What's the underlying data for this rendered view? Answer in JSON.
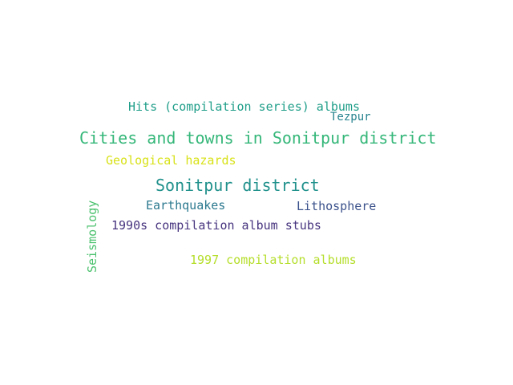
{
  "words": {
    "hits_compilation": {
      "text": "Hits (compilation series) albums",
      "color": "#1f9e89"
    },
    "tezpur": {
      "text": "Tezpur",
      "color": "#26828e"
    },
    "cities_towns": {
      "text": "Cities and towns in Sonitpur district",
      "color": "#35b779"
    },
    "geological_hazards": {
      "text": "Geological hazards",
      "color": "#d8e219"
    },
    "sonitpur_district": {
      "text": "Sonitpur district",
      "color": "#21918c"
    },
    "earthquakes": {
      "text": "Earthquakes",
      "color": "#2a788e"
    },
    "lithosphere": {
      "text": "Lithosphere",
      "color": "#3b528b"
    },
    "stubs_1990s": {
      "text": "1990s compilation album stubs",
      "color": "#46337e"
    },
    "albums_1997": {
      "text": "1997 compilation albums",
      "color": "#b5de2b"
    },
    "seismology": {
      "text": "Seismology",
      "color": "#4ac16d"
    }
  }
}
